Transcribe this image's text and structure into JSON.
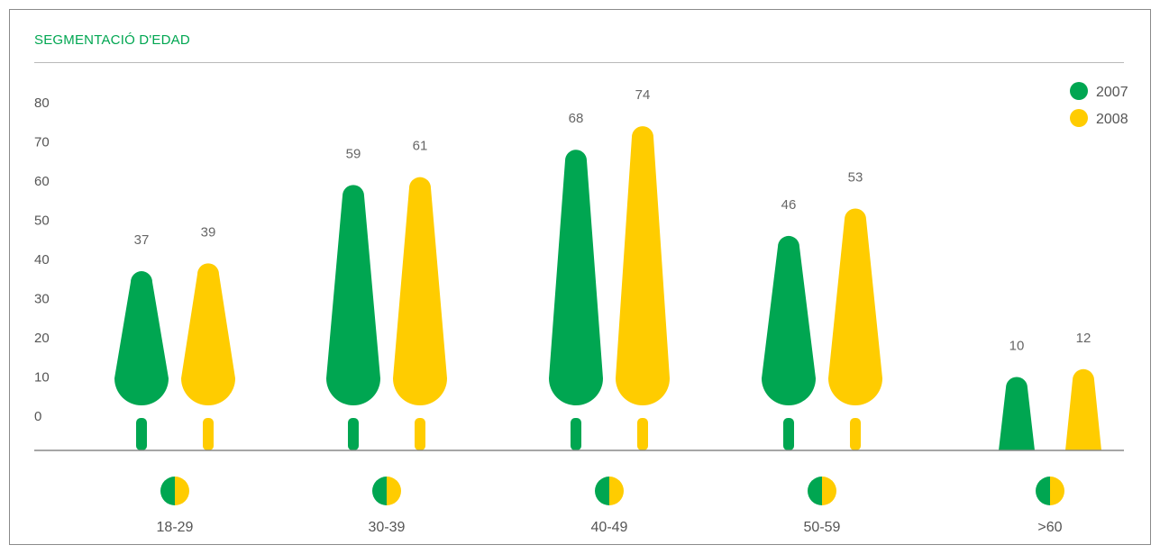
{
  "title": "SEGMENTACIÓ D'EDAD",
  "colors": {
    "series_2007": "#00a651",
    "series_2008": "#ffcc00",
    "axis": "#888888",
    "text": "#555555"
  },
  "chart_data": {
    "type": "bar",
    "title": "SEGMENTACIÓ D'EDAD",
    "xlabel": "",
    "ylabel": "",
    "ylim": [
      0,
      80
    ],
    "yticks": [
      0,
      10,
      20,
      30,
      40,
      50,
      60,
      70,
      80
    ],
    "categories": [
      "18-29",
      "30-39",
      "40-49",
      "50-59",
      ">60"
    ],
    "series": [
      {
        "name": "2007",
        "values": [
          37,
          59,
          68,
          46,
          10
        ]
      },
      {
        "name": "2008",
        "values": [
          39,
          61,
          74,
          53,
          12
        ]
      }
    ],
    "legend": "top-right",
    "grid": false
  }
}
